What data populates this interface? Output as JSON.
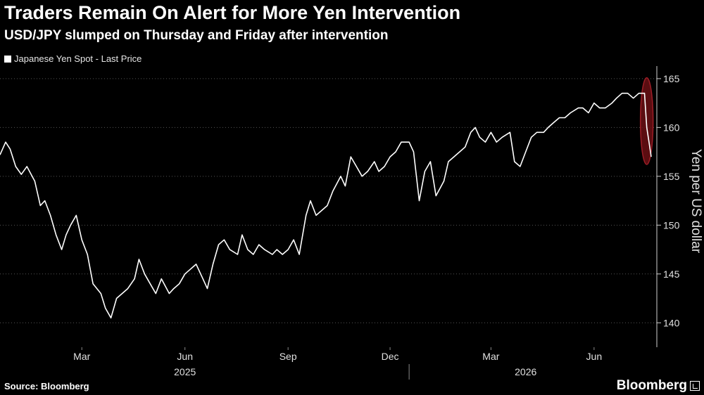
{
  "header": {
    "title": "Traders Remain On Alert for More Yen Intervention",
    "subtitle": "USD/JPY slumped on Thursday and Friday after intervention"
  },
  "footer": {
    "source": "Source: Bloomberg",
    "brand": "Bloomberg"
  },
  "colors": {
    "background": "#000000",
    "line": "#ffffff",
    "grid": "#555555",
    "highlight_fill": "#6b0f14",
    "highlight_stroke": "#9c1d26"
  },
  "chart_data": {
    "type": "line",
    "title": "Traders Remain On Alert for More Yen Intervention",
    "subtitle": "USD/JPY slumped on Thursday and Friday after intervention",
    "ylabel": "Yen per US dollar",
    "ylim": [
      137.5,
      166
    ],
    "yticks": [
      140,
      145,
      150,
      155,
      160,
      165
    ],
    "xlim": [
      "2025-01-01",
      "2026-08-10"
    ],
    "grid": true,
    "legend_position": "top-left",
    "month_ticks": [
      {
        "label": "Mar",
        "date": "2025-03-15"
      },
      {
        "label": "Jun",
        "date": "2025-06-15"
      },
      {
        "label": "Sep",
        "date": "2025-09-15"
      },
      {
        "label": "Dec",
        "date": "2025-12-15"
      },
      {
        "label": "Mar",
        "date": "2026-03-15"
      },
      {
        "label": "Jun",
        "date": "2026-06-15"
      }
    ],
    "year_labels": [
      {
        "label": "2025",
        "date": "2025-06-15"
      },
      {
        "label": "2026",
        "date": "2026-04-15"
      }
    ],
    "year_divider": "2026-01-01",
    "series": [
      {
        "name": "Japanese Yen Spot - Last Price",
        "x": [
          "2025-01-01",
          "2025-01-06",
          "2025-01-10",
          "2025-01-15",
          "2025-01-20",
          "2025-01-25",
          "2025-02-01",
          "2025-02-06",
          "2025-02-10",
          "2025-02-15",
          "2025-02-20",
          "2025-02-25",
          "2025-03-01",
          "2025-03-05",
          "2025-03-10",
          "2025-03-15",
          "2025-03-20",
          "2025-03-25",
          "2025-04-01",
          "2025-04-05",
          "2025-04-10",
          "2025-04-15",
          "2025-04-20",
          "2025-04-25",
          "2025-05-01",
          "2025-05-05",
          "2025-05-10",
          "2025-05-15",
          "2025-05-20",
          "2025-05-25",
          "2025-06-01",
          "2025-06-05",
          "2025-06-10",
          "2025-06-15",
          "2025-06-20",
          "2025-06-25",
          "2025-07-01",
          "2025-07-05",
          "2025-07-10",
          "2025-07-15",
          "2025-07-20",
          "2025-07-25",
          "2025-08-01",
          "2025-08-05",
          "2025-08-10",
          "2025-08-15",
          "2025-08-20",
          "2025-08-25",
          "2025-09-01",
          "2025-09-05",
          "2025-09-10",
          "2025-09-15",
          "2025-09-20",
          "2025-09-25",
          "2025-10-01",
          "2025-10-05",
          "2025-10-10",
          "2025-10-15",
          "2025-10-20",
          "2025-10-25",
          "2025-11-01",
          "2025-11-05",
          "2025-11-10",
          "2025-11-15",
          "2025-11-20",
          "2025-11-25",
          "2025-12-01",
          "2025-12-05",
          "2025-12-10",
          "2025-12-15",
          "2025-12-20",
          "2025-12-25",
          "2026-01-01",
          "2026-01-05",
          "2026-01-10",
          "2026-01-15",
          "2026-01-20",
          "2026-01-25",
          "2026-02-01",
          "2026-02-05",
          "2026-02-10",
          "2026-02-15",
          "2026-02-20",
          "2026-02-25",
          "2026-03-01",
          "2026-03-05",
          "2026-03-10",
          "2026-03-15",
          "2026-03-20",
          "2026-03-25",
          "2026-04-01",
          "2026-04-05",
          "2026-04-10",
          "2026-04-15",
          "2026-04-20",
          "2026-04-25",
          "2026-05-01",
          "2026-05-05",
          "2026-05-10",
          "2026-05-15",
          "2026-05-20",
          "2026-05-25",
          "2026-06-01",
          "2026-06-05",
          "2026-06-10",
          "2026-06-15",
          "2026-06-20",
          "2026-06-25",
          "2026-07-01",
          "2026-07-05",
          "2026-07-10",
          "2026-07-15",
          "2026-07-20",
          "2026-07-25",
          "2026-07-30",
          "2026-08-01",
          "2026-08-03",
          "2026-08-05"
        ],
        "y": [
          157.2,
          158.5,
          157.8,
          156.0,
          155.2,
          156.0,
          154.5,
          152.0,
          152.5,
          151.0,
          149.0,
          147.5,
          149.0,
          150.0,
          151.0,
          148.5,
          147.0,
          144.0,
          143.0,
          141.5,
          140.5,
          142.5,
          143.0,
          143.5,
          144.5,
          146.5,
          145.0,
          144.0,
          143.0,
          144.5,
          143.0,
          143.5,
          144.0,
          145.0,
          145.5,
          146.0,
          144.5,
          143.5,
          146.0,
          148.0,
          148.5,
          147.5,
          147.0,
          149.0,
          147.5,
          147.0,
          148.0,
          147.5,
          147.0,
          147.5,
          147.0,
          147.5,
          148.5,
          147.0,
          151.0,
          152.5,
          151.0,
          151.5,
          152.0,
          153.5,
          155.0,
          154.0,
          157.0,
          156.0,
          155.0,
          155.5,
          156.5,
          155.5,
          156.0,
          157.0,
          157.5,
          158.5,
          158.5,
          157.5,
          152.5,
          155.5,
          156.5,
          153.0,
          154.5,
          156.5,
          157.0,
          157.5,
          158.0,
          159.5,
          160.0,
          159.0,
          158.5,
          159.5,
          158.5,
          159.0,
          159.5,
          156.5,
          156.0,
          157.5,
          159.0,
          159.5,
          159.5,
          160.0,
          160.5,
          161.0,
          161.0,
          161.5,
          162.0,
          162.0,
          161.5,
          162.5,
          162.0,
          162.0,
          162.5,
          163.0,
          163.5,
          163.5,
          163.0,
          163.5,
          163.5,
          160.0,
          158.5,
          157.0
        ]
      }
    ],
    "highlight": {
      "date": "2026-08-01",
      "y_low": 156.5,
      "y_high": 164.8
    }
  }
}
